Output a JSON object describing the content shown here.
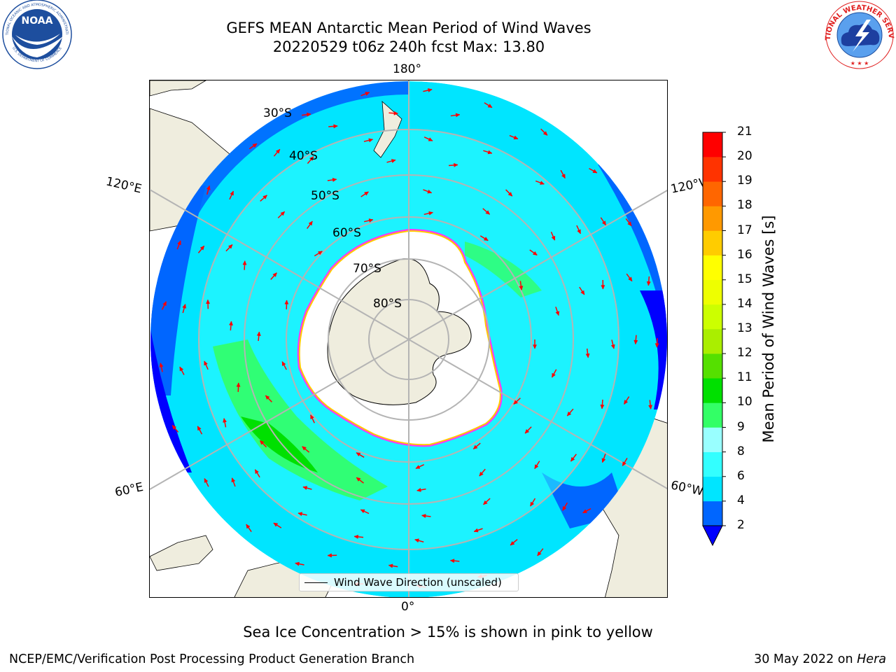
{
  "title_line1": "GEFS MEAN Antarctic Mean Period of Wind Waves",
  "title_line2": "20220529 t06z 240h fcst   Max: 13.80",
  "logos": {
    "left": {
      "name": "NOAA",
      "ring_text": "NATIONAL OCEANIC AND ATMOSPHERIC ADMINISTRATION",
      "bottom_text": "U.S. DEPARTMENT OF COMMERCE",
      "color": "#1d4e9e"
    },
    "right": {
      "ring_text": "NATIONAL WEATHER SERVICE",
      "color": "#e02020"
    }
  },
  "map": {
    "projection": "south polar stereographic",
    "lon_labels": {
      "top": "180°",
      "bottom": "0°",
      "upper_left": "120°E",
      "upper_right": "120°W",
      "lower_left": "60°E",
      "lower_right": "60°W"
    },
    "lat_labels": [
      "30°S",
      "40°S",
      "50°S",
      "60°S",
      "70°S",
      "80°S"
    ],
    "land_color": "#efedde",
    "sea_ice_color": "#ffffff",
    "sea_ice_edge_colors": [
      "#ff33ff",
      "#ffcc00"
    ],
    "arrow_color": "#ff0000",
    "grid_color": "#b4b4b4",
    "legend_label": "Wind Wave Direction (unscaled)"
  },
  "colorbar": {
    "label": "Mean Period of Wind Waves [s]",
    "ticks": [
      "2",
      "4",
      "6",
      "8",
      "9",
      "10",
      "11",
      "12",
      "13",
      "14",
      "15",
      "16",
      "17",
      "18",
      "19",
      "20",
      "21"
    ],
    "colors": [
      "#0066ff",
      "#00e5ff",
      "#33ffff",
      "#99ffff",
      "#33ff66",
      "#00e000",
      "#55e000",
      "#aaee00",
      "#ccff00",
      "#eeff00",
      "#ffff00",
      "#ffcc00",
      "#ff9900",
      "#ff6600",
      "#ff3300",
      "#ff0000"
    ],
    "under_color": "#0000ff"
  },
  "footnote": "Sea Ice Concentration > 15% is shown in pink to yellow",
  "branch": "NCEP/EMC/Verification Post Processing Product Generation Branch",
  "date": "30 May 2022 on ",
  "host": "Hera"
}
